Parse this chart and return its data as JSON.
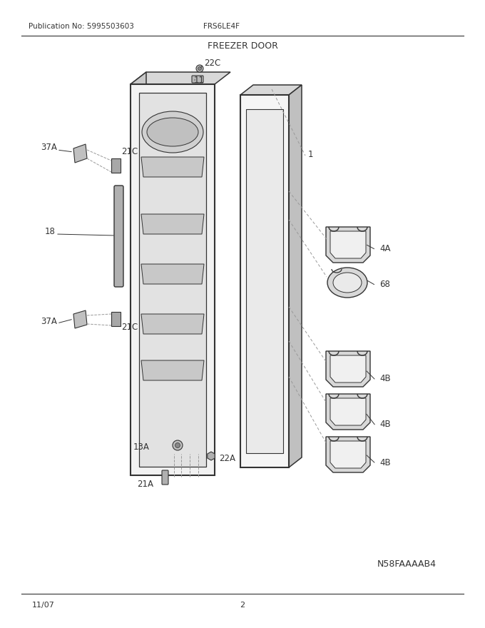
{
  "title": "FREEZER DOOR",
  "pub_no": "Publication No: 5995503603",
  "model": "FRS6LE4F",
  "date": "11/07",
  "page": "2",
  "image_id": "N58FAAAAB4",
  "bg_color": "#ffffff",
  "line_color": "#333333"
}
